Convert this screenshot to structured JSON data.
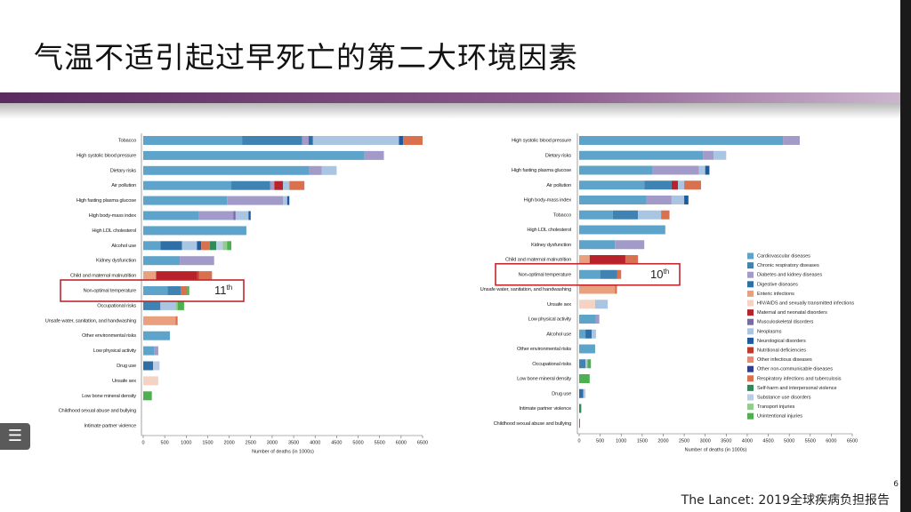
{
  "slide": {
    "title": "气温不适引起过早死亡的第二大环境因素",
    "source": "The Lancet: 2019全球疾病负担报告",
    "page": "6"
  },
  "chart_data": [
    {
      "type": "bar",
      "orientation": "horizontal",
      "stacked": true,
      "xlabel": "Number of deaths (in 1000s)",
      "categories": [
        "Tobacco",
        "High systolic blood pressure",
        "Dietary risks",
        "Air pollution",
        "High fasting plasma glucose",
        "High body-mass index",
        "High LDL cholesterol",
        "Alcohol use",
        "Kidney dysfunction",
        "Child and maternal malnutrition",
        "Non-optimal temperature",
        "Occupational risks",
        "Unsafe water, sanitation, and handwashing",
        "Other environmental risks",
        "Low physical activity",
        "Drug use",
        "Unsafe sex",
        "Low bone mineral density",
        "Childhood sexual abuse and bullying",
        "Intimate partner violence"
      ],
      "xlim": [
        0,
        6500
      ],
      "xticks": [
        0,
        500,
        1000,
        1500,
        2000,
        2500,
        3000,
        3500,
        4000,
        4500,
        5000,
        5500,
        6000,
        6500
      ],
      "annotation": {
        "text": "11",
        "suffix": "th",
        "category": 10
      },
      "series": [
        {
          "color": "#5ea3c9",
          "values": [
            2300,
            5150,
            3850,
            2050,
            1950,
            1300,
            2400,
            400,
            850,
            0,
            570,
            0,
            0,
            620,
            250,
            0,
            0,
            0,
            0,
            0
          ]
        },
        {
          "color": "#3f83b3",
          "values": [
            1400,
            0,
            0,
            900,
            0,
            0,
            0,
            0,
            0,
            0,
            300,
            400,
            0,
            0,
            0,
            0,
            0,
            0,
            0,
            0
          ]
        },
        {
          "color": "#a29bc9",
          "values": [
            150,
            450,
            300,
            100,
            1300,
            800,
            0,
            0,
            800,
            0,
            0,
            0,
            0,
            0,
            100,
            0,
            0,
            0,
            0,
            0
          ]
        },
        {
          "color": "#2f6fa8",
          "values": [
            100,
            0,
            0,
            0,
            0,
            0,
            0,
            500,
            0,
            0,
            0,
            0,
            0,
            0,
            0,
            230,
            0,
            0,
            0,
            0
          ]
        },
        {
          "color": "#e9a07f",
          "values": [
            0,
            0,
            0,
            0,
            0,
            0,
            0,
            0,
            0,
            300,
            0,
            0,
            750,
            0,
            0,
            0,
            0,
            0,
            0,
            0
          ]
        },
        {
          "color": "#f4d3c2",
          "values": [
            0,
            0,
            0,
            0,
            0,
            0,
            0,
            0,
            0,
            0,
            0,
            0,
            0,
            0,
            0,
            0,
            350,
            0,
            0,
            0
          ]
        },
        {
          "color": "#b8232b",
          "values": [
            0,
            0,
            0,
            200,
            0,
            0,
            0,
            0,
            0,
            950,
            0,
            0,
            0,
            0,
            0,
            0,
            0,
            0,
            0,
            0
          ]
        },
        {
          "color": "#7b68a6",
          "values": [
            0,
            0,
            0,
            0,
            0,
            50,
            0,
            0,
            0,
            0,
            0,
            0,
            0,
            0,
            0,
            0,
            0,
            0,
            0,
            0
          ]
        },
        {
          "color": "#a9c5e2",
          "values": [
            2000,
            0,
            350,
            150,
            100,
            300,
            0,
            350,
            0,
            0,
            0,
            350,
            0,
            0,
            0,
            0,
            0,
            0,
            0,
            0
          ]
        },
        {
          "color": "#1d5b9e",
          "values": [
            100,
            0,
            0,
            0,
            50,
            50,
            0,
            100,
            0,
            0,
            0,
            0,
            0,
            0,
            0,
            0,
            0,
            0,
            0,
            0
          ]
        },
        {
          "color": "#c0392b",
          "values": [
            0,
            0,
            0,
            0,
            0,
            0,
            0,
            0,
            0,
            50,
            0,
            0,
            0,
            0,
            0,
            0,
            0,
            0,
            0,
            0
          ]
        },
        {
          "color": "#e58a75",
          "values": [
            0,
            0,
            0,
            0,
            0,
            0,
            0,
            0,
            0,
            0,
            0,
            0,
            0,
            0,
            0,
            0,
            0,
            0,
            0,
            0
          ]
        },
        {
          "color": "#2d3f8e",
          "values": [
            0,
            0,
            0,
            0,
            0,
            0,
            0,
            0,
            0,
            0,
            0,
            0,
            0,
            0,
            0,
            0,
            0,
            0,
            0,
            0
          ]
        },
        {
          "color": "#d9714f",
          "values": [
            450,
            0,
            0,
            350,
            0,
            0,
            0,
            200,
            0,
            300,
            150,
            0,
            50,
            0,
            0,
            0,
            0,
            0,
            0,
            0
          ]
        },
        {
          "color": "#2e8b57",
          "values": [
            0,
            0,
            0,
            0,
            0,
            0,
            0,
            150,
            0,
            0,
            0,
            0,
            0,
            0,
            0,
            0,
            0,
            0,
            0,
            0
          ]
        },
        {
          "color": "#bccbe6",
          "values": [
            0,
            0,
            0,
            0,
            0,
            0,
            0,
            150,
            0,
            0,
            0,
            0,
            0,
            0,
            0,
            150,
            0,
            0,
            0,
            0
          ]
        },
        {
          "color": "#93cc8f",
          "values": [
            0,
            0,
            0,
            0,
            0,
            0,
            0,
            100,
            0,
            0,
            0,
            50,
            0,
            0,
            0,
            0,
            0,
            0,
            0,
            0
          ]
        },
        {
          "color": "#4caf50",
          "values": [
            0,
            0,
            0,
            0,
            0,
            0,
            0,
            100,
            0,
            0,
            50,
            150,
            0,
            0,
            0,
            0,
            0,
            200,
            0,
            0
          ]
        }
      ]
    },
    {
      "type": "bar",
      "orientation": "horizontal",
      "stacked": true,
      "xlabel": "Number of deaths (in 1000s)",
      "legend": "right",
      "categories": [
        "High systolic blood pressure",
        "Dietary risks",
        "High fasting plasma glucose",
        "Air pollution",
        "High body-mass index",
        "Tobacco",
        "High LDL cholesterol",
        "Kidney dysfunction",
        "Child and maternal malnutrition",
        "Non-optimal temperature",
        "Unsafe water, sanitation, and handwashing",
        "Unsafe sex",
        "Low physical activity",
        "Alcohol use",
        "Other environmental risks",
        "Occupational risks",
        "Low bone mineral density",
        "Drug use",
        "Intimate partner violence",
        "Childhood sexual abuse and bullying"
      ],
      "xlim": [
        0,
        6500
      ],
      "xticks": [
        0,
        500,
        1000,
        1500,
        2000,
        2500,
        3000,
        3500,
        4000,
        4500,
        5000,
        5500,
        6000,
        6500
      ],
      "annotation": {
        "text": "10",
        "suffix": "th",
        "category": 9
      },
      "series": [
        {
          "name": "Cardiovascular diseases",
          "color": "#5ea3c9",
          "values": [
            4850,
            2950,
            1750,
            1550,
            1600,
            800,
            2050,
            850,
            0,
            500,
            0,
            0,
            400,
            150,
            380,
            0,
            0,
            0,
            0,
            0
          ]
        },
        {
          "name": "Chronic respiratory diseases",
          "color": "#3f83b3",
          "values": [
            0,
            0,
            0,
            650,
            0,
            600,
            0,
            0,
            0,
            400,
            0,
            0,
            0,
            0,
            0,
            150,
            0,
            0,
            0,
            0
          ]
        },
        {
          "name": "Diabetes and kidney diseases",
          "color": "#a29bc9",
          "values": [
            400,
            250,
            1100,
            0,
            600,
            0,
            0,
            700,
            0,
            0,
            0,
            0,
            80,
            0,
            0,
            0,
            0,
            0,
            0,
            0
          ]
        },
        {
          "name": "Digestive diseases",
          "color": "#2f6fa8",
          "values": [
            0,
            0,
            0,
            0,
            0,
            0,
            0,
            0,
            0,
            0,
            0,
            0,
            0,
            150,
            0,
            0,
            0,
            100,
            0,
            0
          ]
        },
        {
          "name": "Enteric infections",
          "color": "#e9a07f",
          "values": [
            0,
            0,
            0,
            0,
            0,
            0,
            0,
            0,
            250,
            0,
            850,
            0,
            0,
            0,
            0,
            0,
            0,
            0,
            0,
            0
          ]
        },
        {
          "name": "HIV/AIDS and sexually transmitted infections",
          "color": "#f4d3c2",
          "values": [
            0,
            0,
            0,
            0,
            0,
            0,
            0,
            0,
            0,
            0,
            0,
            380,
            0,
            0,
            0,
            0,
            0,
            0,
            0,
            0
          ]
        },
        {
          "name": "Maternal and neonatal disorders",
          "color": "#b8232b",
          "values": [
            0,
            0,
            0,
            150,
            0,
            0,
            0,
            0,
            850,
            0,
            0,
            0,
            0,
            0,
            0,
            0,
            0,
            0,
            0,
            0
          ]
        },
        {
          "name": "Musculoskeletal disorders",
          "color": "#7b68a6",
          "values": [
            0,
            0,
            0,
            0,
            0,
            0,
            0,
            0,
            0,
            0,
            0,
            0,
            0,
            0,
            0,
            0,
            0,
            0,
            0,
            0
          ]
        },
        {
          "name": "Neoplasms",
          "color": "#a9c5e2",
          "values": [
            0,
            300,
            150,
            150,
            300,
            550,
            0,
            0,
            0,
            0,
            0,
            300,
            0,
            100,
            0,
            50,
            0,
            0,
            0,
            0
          ]
        },
        {
          "name": "Neurological disorders",
          "color": "#1d5b9e",
          "values": [
            0,
            0,
            100,
            0,
            100,
            0,
            0,
            0,
            0,
            0,
            0,
            0,
            0,
            0,
            0,
            0,
            0,
            0,
            0,
            0
          ]
        },
        {
          "name": "Nutritional deficiencies",
          "color": "#c0392b",
          "values": [
            0,
            0,
            0,
            0,
            0,
            0,
            0,
            0,
            0,
            0,
            0,
            0,
            0,
            0,
            0,
            0,
            0,
            0,
            0,
            0
          ]
        },
        {
          "name": "Other infectious diseases",
          "color": "#e58a75",
          "values": [
            0,
            0,
            0,
            0,
            0,
            0,
            0,
            0,
            0,
            0,
            0,
            0,
            0,
            0,
            0,
            0,
            0,
            0,
            0,
            0
          ]
        },
        {
          "name": "Other non-communicable diseases",
          "color": "#2d3f8e",
          "values": [
            0,
            0,
            0,
            0,
            0,
            0,
            0,
            0,
            0,
            0,
            0,
            0,
            0,
            0,
            0,
            0,
            0,
            0,
            0,
            0
          ]
        },
        {
          "name": "Respiratory infections and tuberculosis",
          "color": "#d9714f",
          "values": [
            0,
            0,
            0,
            400,
            0,
            200,
            0,
            0,
            300,
            100,
            50,
            0,
            0,
            0,
            0,
            0,
            0,
            0,
            0,
            0
          ]
        },
        {
          "name": "Self-harm and interpersonal violence",
          "color": "#2e8b57",
          "values": [
            0,
            0,
            0,
            0,
            0,
            0,
            0,
            0,
            0,
            0,
            0,
            0,
            0,
            0,
            0,
            0,
            0,
            0,
            50,
            20
          ]
        },
        {
          "name": "Substance use disorders",
          "color": "#bccbe6",
          "values": [
            0,
            0,
            0,
            0,
            0,
            0,
            0,
            0,
            0,
            0,
            0,
            0,
            0,
            0,
            0,
            0,
            0,
            50,
            0,
            0
          ]
        },
        {
          "name": "Transport injuries",
          "color": "#93cc8f",
          "values": [
            0,
            0,
            0,
            0,
            0,
            0,
            0,
            0,
            0,
            0,
            0,
            0,
            0,
            0,
            0,
            0,
            0,
            0,
            0,
            0
          ]
        },
        {
          "name": "Unintentional injuries",
          "color": "#4caf50",
          "values": [
            0,
            0,
            0,
            0,
            0,
            0,
            0,
            0,
            0,
            0,
            0,
            0,
            0,
            0,
            0,
            80,
            250,
            0,
            0,
            0
          ]
        }
      ]
    }
  ]
}
